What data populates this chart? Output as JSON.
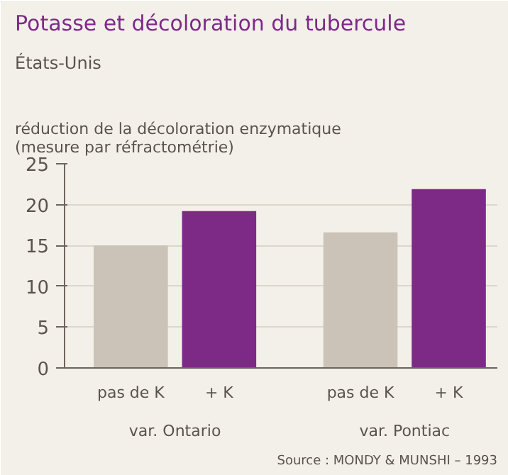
{
  "chart_data": {
    "type": "bar",
    "title": "Potasse et décoloration du tubercule",
    "subtitle": "États-Unis",
    "ylabel": "réduction de la décoloration enzymatique\n(mesure par réfractométrie)",
    "categories": [
      "pas de K",
      "+ K",
      "pas de K",
      "+ K"
    ],
    "values": [
      15,
      19.2,
      16.6,
      21.9
    ],
    "colors": [
      "#cbc3b7",
      "#7d2a87",
      "#cbc3b7",
      "#7d2a87"
    ],
    "ylim": [
      0,
      25
    ],
    "yticks": [
      0,
      5,
      10,
      15,
      20,
      25
    ],
    "grid": "y",
    "annotations": [
      "var. Ontario",
      "var. Pontiac",
      "Source : MONDY & MUNSHI – 1993"
    ]
  }
}
